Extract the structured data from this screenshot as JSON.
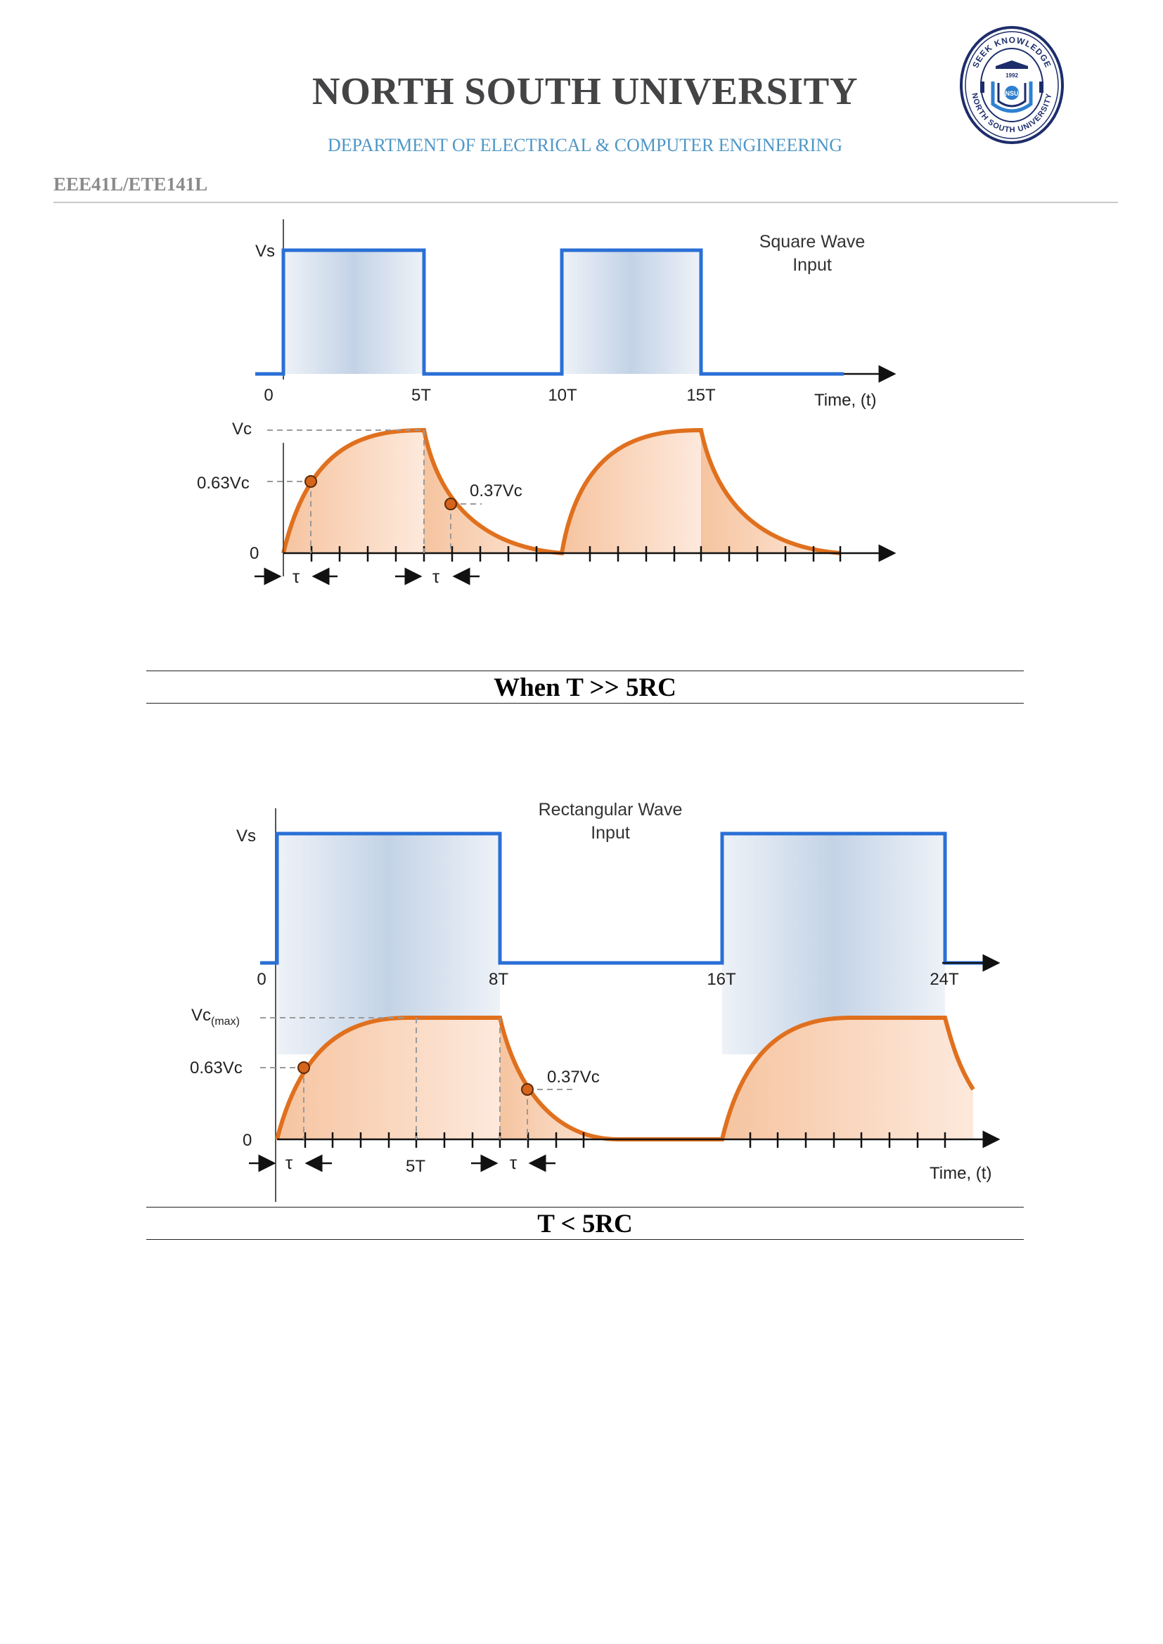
{
  "header": {
    "university": "NORTH SOUTH UNIVERSITY",
    "department": "DEPARTMENT OF ELECTRICAL & COMPUTER ENGINEERING",
    "course_code": "EEE41L/ETE141L",
    "logo_text": [
      "SEEK KNOWLEDGE",
      "NORTH SOUTH UNIVERSITY",
      "1992",
      "NSU"
    ]
  },
  "figures": [
    {
      "input_label": [
        "Square Wave",
        "Input"
      ],
      "vs_label": "Vs",
      "time_ticks": [
        "0",
        "5T",
        "10T",
        "15T"
      ],
      "time_label": "Time, (t)",
      "vc_label": "Vc",
      "vc063_label": "0.63Vc",
      "vc037_label": "0.37Vc",
      "zero_label": "0",
      "tau_label": "τ",
      "caption": "When T >> 5RC"
    },
    {
      "input_label": [
        "Rectangular Wave",
        "Input"
      ],
      "vs_label": "Vs",
      "time_ticks": [
        "0",
        "8T",
        "16T",
        "24T"
      ],
      "time_label": "Time, (t)",
      "vc_label": "Vc",
      "vc_sub": "(max)",
      "vc063_label": "0.63Vc",
      "vc037_label": "0.37Vc",
      "zero_label": "0",
      "tau_label": "τ",
      "mid_tick": "5T",
      "caption": "T <  5RC"
    }
  ],
  "colors": {
    "wave_blue": "#2a6fd6",
    "charge_orange": "#e0701e",
    "fill_orange": "#f6c9a6",
    "fill_blue": "#c2d3e6",
    "dashed_gray": "#9a9a9a"
  }
}
